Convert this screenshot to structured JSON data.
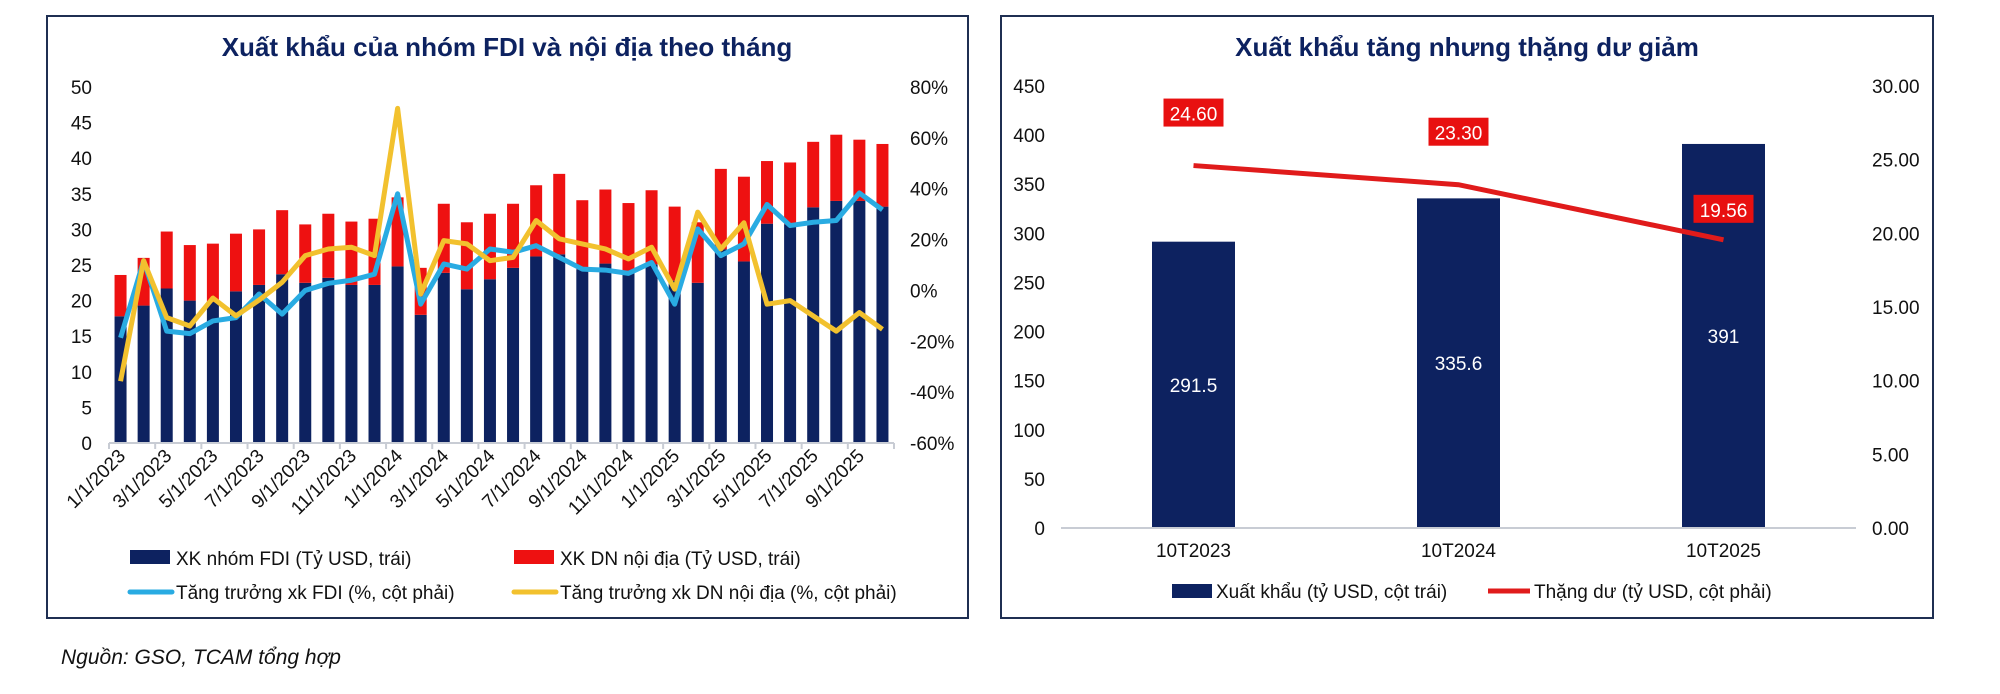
{
  "chart_data": [
    {
      "type": "bar",
      "stacked": true,
      "title": "Xuất khẩu của nhóm FDI và nội địa theo tháng",
      "x": [
        "1/1/2023",
        "2/1/2023",
        "3/1/2023",
        "4/1/2023",
        "5/1/2023",
        "6/1/2023",
        "7/1/2023",
        "8/1/2023",
        "9/1/2023",
        "10/1/2023",
        "11/1/2023",
        "12/1/2023",
        "1/1/2024",
        "2/1/2024",
        "3/1/2024",
        "4/1/2024",
        "5/1/2024",
        "6/1/2024",
        "7/1/2024",
        "8/1/2024",
        "9/1/2024",
        "10/1/2024",
        "11/1/2024",
        "12/1/2024",
        "1/1/2025",
        "2/1/2025",
        "3/1/2025",
        "4/1/2025",
        "5/1/2025",
        "6/1/2025",
        "7/1/2025",
        "8/1/2025",
        "9/1/2025",
        "10/1/2025"
      ],
      "x_tick_labels": [
        "1/1/2023",
        "3/1/2023",
        "5/1/2023",
        "7/1/2023",
        "9/1/2023",
        "11/1/2023",
        "1/1/2024",
        "3/1/2024",
        "5/1/2024",
        "7/1/2024",
        "9/1/2024",
        "11/1/2024",
        "1/1/2025",
        "3/1/2025",
        "5/1/2025",
        "7/1/2025",
        "9/1/2025"
      ],
      "y_left": {
        "range": [
          0,
          50
        ],
        "ticks": [
          "0",
          "5",
          "10",
          "15",
          "20",
          "25",
          "30",
          "35",
          "40",
          "45",
          "50"
        ]
      },
      "y_right": {
        "range": [
          -60,
          80
        ],
        "ticks": [
          "-60%",
          "-40%",
          "-20%",
          "0%",
          "20%",
          "40%",
          "60%",
          "80%"
        ]
      },
      "grid": false,
      "legend_position": "bottom",
      "series": [
        {
          "name": "XK nhóm FDI (Tỷ USD, trái)",
          "kind": "bar",
          "axis": "left",
          "color": "#0d2260",
          "values": [
            17.8,
            19.3,
            21.7,
            20.0,
            19.8,
            21.3,
            22.2,
            23.7,
            22.5,
            23.2,
            22.2,
            22.2,
            24.8,
            18.0,
            23.9,
            21.6,
            23.0,
            24.6,
            26.2,
            26.5,
            24.4,
            25.2,
            24.2,
            25.1,
            22.8,
            22.5,
            27.2,
            25.5,
            30.8,
            30.7,
            33.1,
            34.0,
            34.0,
            33.2
          ]
        },
        {
          "name": "XK DN nội địa (Tỷ USD, trái)",
          "kind": "bar",
          "axis": "left",
          "color": "#ee1111",
          "values": [
            5.8,
            6.7,
            8.0,
            7.8,
            8.2,
            8.1,
            7.8,
            9.0,
            8.2,
            9.0,
            8.9,
            9.3,
            9.7,
            6.6,
            9.7,
            9.4,
            9.2,
            9.0,
            10.0,
            11.3,
            9.7,
            10.4,
            9.5,
            10.4,
            10.4,
            8.5,
            11.3,
            11.9,
            8.8,
            8.7,
            9.2,
            9.3,
            8.6,
            8.8
          ]
        },
        {
          "name": "Tăng trưởng xk FDI (%, cột phải)",
          "kind": "line",
          "axis": "right",
          "color": "#29abe2",
          "values": [
            -18.6,
            11.7,
            -16,
            -17,
            -12,
            -10.7,
            -1.4,
            -9.3,
            0,
            2.8,
            4,
            6.4,
            38,
            -5.4,
            10.4,
            8.4,
            16.3,
            15,
            17.6,
            13,
            8.4,
            8,
            6.7,
            11,
            -5.4,
            24.2,
            13.7,
            18.3,
            33.8,
            25.5,
            26.8,
            27.5,
            38.3,
            31.7
          ]
        },
        {
          "name": "Tăng trưởng xk DN nội địa (%, cột phải)",
          "kind": "line",
          "axis": "right",
          "color": "#f2c12e",
          "values": [
            -35.7,
            11.7,
            -10.7,
            -14,
            -3,
            -10,
            -3.8,
            3.2,
            13.7,
            16.3,
            17,
            13.7,
            71.6,
            -1.4,
            19.6,
            18.3,
            11.7,
            13,
            27.5,
            20.3,
            18.3,
            16.3,
            12.4,
            17,
            0.5,
            30.8,
            16.3,
            26.6,
            -5.4,
            -4,
            -10,
            -16,
            -8.7,
            -15.3
          ]
        }
      ]
    },
    {
      "type": "bar",
      "title": "Xuất khẩu tăng nhưng thặng dư giảm",
      "categories": [
        "10T2023",
        "10T2024",
        "10T2025"
      ],
      "y_left": {
        "range": [
          0,
          450
        ],
        "ticks": [
          "0",
          "50",
          "100",
          "150",
          "200",
          "250",
          "300",
          "350",
          "400",
          "450"
        ]
      },
      "y_right": {
        "range": [
          0,
          30
        ],
        "ticks": [
          "0.00",
          "5.00",
          "10.00",
          "15.00",
          "20.00",
          "25.00",
          "30.00"
        ]
      },
      "grid": false,
      "legend_position": "bottom",
      "series": [
        {
          "name": "Xuất khẩu (tỷ USD, cột trái)",
          "kind": "bar",
          "axis": "left",
          "color": "#0d2260",
          "values": [
            291.5,
            335.6,
            391
          ],
          "labels": [
            "291.5",
            "335.6",
            "391"
          ]
        },
        {
          "name": "Thặng dư (tỷ USD, cột phải)",
          "kind": "line",
          "axis": "right",
          "color": "#e01b1b",
          "values": [
            24.6,
            23.3,
            19.56
          ],
          "labels": [
            "24.60",
            "23.30",
            "19.56"
          ]
        }
      ]
    }
  ],
  "source": "Nguồn: GSO, TCAM tổng hợp"
}
